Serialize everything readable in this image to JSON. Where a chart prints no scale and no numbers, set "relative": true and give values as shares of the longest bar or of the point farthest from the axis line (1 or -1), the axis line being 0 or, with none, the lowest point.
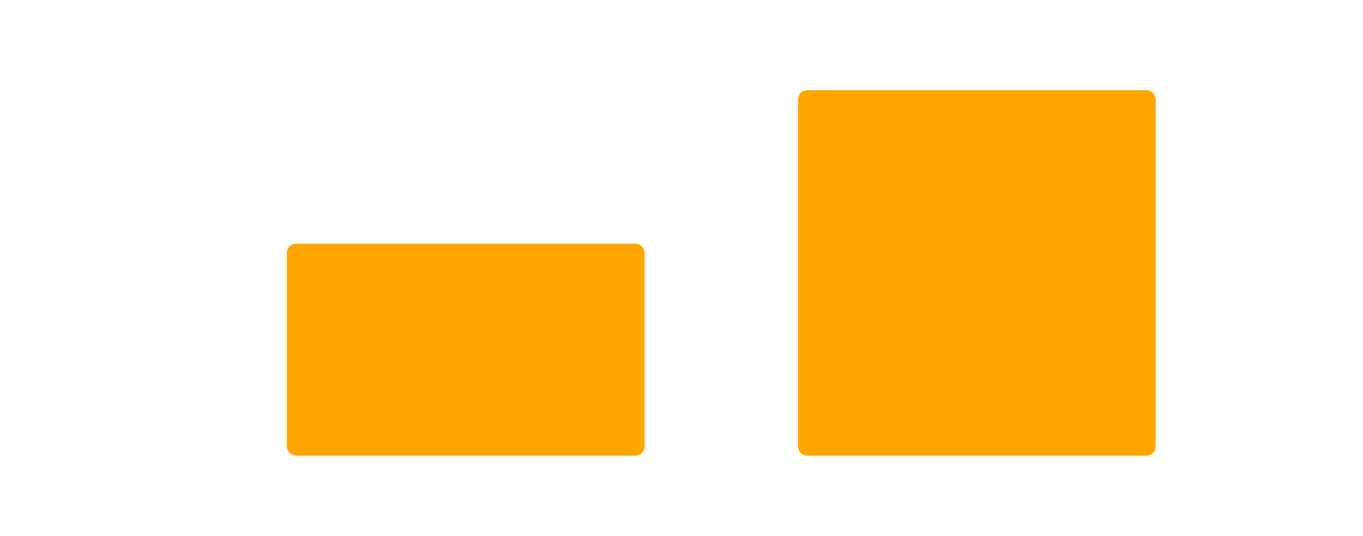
{
  "chart_data": {
    "type": "bar",
    "categories": [
      null,
      null
    ],
    "relative": true,
    "color": "#ffa500",
    "values": [
      0.58,
      1
    ]
  }
}
